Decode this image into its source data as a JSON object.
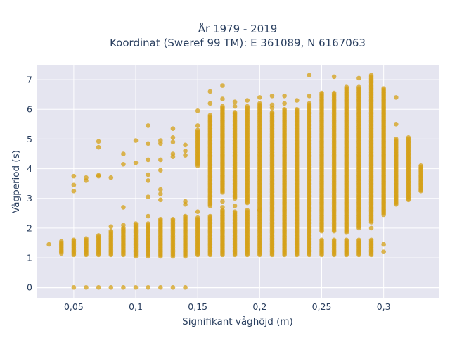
{
  "chart_data": {
    "type": "scatter",
    "title_lines": [
      "År 1979 - 2019",
      "Koordinat (Sweref 99 TM): E 361089, N 6167063"
    ],
    "xlabel": "Signifikant våghöjd (m)",
    "ylabel": "Vågperiod (s)",
    "xlim": [
      0.02,
      0.345
    ],
    "ylim": [
      -0.35,
      7.5
    ],
    "x_ticks": [
      0.05,
      0.1,
      0.15,
      0.2,
      0.25,
      0.3
    ],
    "x_tick_labels": [
      "0,05",
      "0,1",
      "0,15",
      "0,2",
      "0,25",
      "0,3"
    ],
    "y_ticks": [
      0,
      1,
      2,
      3,
      4,
      5,
      6,
      7
    ],
    "y_tick_labels": [
      "0",
      "1",
      "2",
      "3",
      "4",
      "5",
      "6",
      "7"
    ],
    "grid": true,
    "colors": {
      "marker": "#d4a017",
      "plot_bg": "#e5e5f0"
    },
    "columns": [
      {
        "x": 0.03,
        "segments": [
          [
            1.45,
            1.45
          ]
        ],
        "points": []
      },
      {
        "x": 0.04,
        "segments": [
          [
            1.15,
            1.55
          ]
        ],
        "points": []
      },
      {
        "x": 0.05,
        "segments": [
          [
            1.1,
            1.6
          ]
        ],
        "points": [
          0,
          3.25,
          3.45,
          3.75
        ]
      },
      {
        "x": 0.06,
        "segments": [
          [
            1.1,
            1.65
          ]
        ],
        "points": [
          0,
          3.6,
          3.7
        ]
      },
      {
        "x": 0.07,
        "segments": [
          [
            1.1,
            1.75
          ]
        ],
        "points": [
          0,
          3.75,
          3.78,
          4.72,
          4.92
        ]
      },
      {
        "x": 0.08,
        "segments": [
          [
            1.1,
            1.9
          ]
        ],
        "points": [
          0,
          2.05,
          3.7
        ]
      },
      {
        "x": 0.09,
        "segments": [
          [
            1.1,
            2.0
          ]
        ],
        "points": [
          0,
          2.1,
          2.7,
          4.15,
          4.5
        ]
      },
      {
        "x": 0.1,
        "segments": [
          [
            1.05,
            2.15
          ]
        ],
        "points": [
          0,
          4.2,
          4.95
        ]
      },
      {
        "x": 0.11,
        "segments": [
          [
            1.05,
            2.15
          ]
        ],
        "points": [
          0,
          2.4,
          3.05,
          3.6,
          3.8,
          4.3,
          4.85,
          5.45
        ]
      },
      {
        "x": 0.12,
        "segments": [
          [
            1.05,
            2.3
          ]
        ],
        "points": [
          0,
          2.95,
          3.15,
          3.3,
          3.95,
          4.3,
          4.85,
          4.95
        ]
      },
      {
        "x": 0.13,
        "segments": [
          [
            1.05,
            2.3
          ]
        ],
        "points": [
          0,
          4.4,
          4.5,
          4.9,
          5.05,
          5.35
        ]
      },
      {
        "x": 0.14,
        "segments": [
          [
            1.05,
            2.4
          ]
        ],
        "points": [
          0,
          2.8,
          2.9,
          4.45,
          4.6,
          4.8
        ]
      },
      {
        "x": 0.15,
        "segments": [
          [
            1.1,
            2.35
          ],
          [
            4.1,
            5.3
          ]
        ],
        "points": [
          2.55,
          5.45,
          5.95
        ]
      },
      {
        "x": 0.16,
        "segments": [
          [
            1.1,
            2.4
          ],
          [
            2.75,
            5.8
          ]
        ],
        "points": [
          6.2,
          6.6
        ]
      },
      {
        "x": 0.17,
        "segments": [
          [
            1.1,
            2.6
          ],
          [
            3.2,
            6.1
          ]
        ],
        "points": [
          2.7,
          2.9,
          6.35,
          6.8
        ]
      },
      {
        "x": 0.18,
        "segments": [
          [
            1.1,
            2.55
          ],
          [
            3.0,
            5.9
          ]
        ],
        "points": [
          2.75,
          6.1,
          6.25
        ]
      },
      {
        "x": 0.19,
        "segments": [
          [
            1.1,
            2.6
          ],
          [
            2.85,
            6.1
          ]
        ],
        "points": [
          6.3
        ]
      },
      {
        "x": 0.2,
        "segments": [
          [
            1.1,
            2.6
          ],
          [
            2.6,
            6.2
          ]
        ],
        "points": [
          6.4
        ]
      },
      {
        "x": 0.21,
        "segments": [
          [
            1.1,
            5.9
          ]
        ],
        "points": [
          6.05,
          6.15,
          6.45
        ]
      },
      {
        "x": 0.22,
        "segments": [
          [
            1.1,
            6.0
          ]
        ],
        "points": [
          6.2,
          6.45
        ]
      },
      {
        "x": 0.23,
        "segments": [
          [
            1.1,
            6.0
          ]
        ],
        "points": [
          6.3
        ]
      },
      {
        "x": 0.24,
        "segments": [
          [
            1.1,
            6.2
          ]
        ],
        "points": [
          6.45,
          7.15
        ]
      },
      {
        "x": 0.25,
        "segments": [
          [
            1.1,
            1.6
          ],
          [
            1.9,
            6.55
          ]
        ],
        "points": []
      },
      {
        "x": 0.26,
        "segments": [
          [
            1.1,
            1.6
          ],
          [
            1.9,
            6.55
          ]
        ],
        "points": [
          7.1
        ]
      },
      {
        "x": 0.27,
        "segments": [
          [
            1.1,
            1.6
          ],
          [
            1.85,
            6.75
          ]
        ],
        "points": []
      },
      {
        "x": 0.28,
        "segments": [
          [
            1.1,
            1.6
          ],
          [
            2.0,
            6.75
          ]
        ],
        "points": [
          7.05
        ]
      },
      {
        "x": 0.29,
        "segments": [
          [
            1.1,
            1.6
          ],
          [
            2.2,
            7.15
          ]
        ],
        "points": [
          2.0
        ]
      },
      {
        "x": 0.3,
        "segments": [
          [
            2.45,
            6.7
          ]
        ],
        "points": [
          1.2,
          1.45
        ]
      },
      {
        "x": 0.31,
        "segments": [
          [
            2.8,
            5.0
          ]
        ],
        "points": [
          5.5,
          6.4
        ]
      },
      {
        "x": 0.32,
        "segments": [
          [
            2.95,
            5.05
          ]
        ],
        "points": []
      },
      {
        "x": 0.33,
        "segments": [
          [
            3.25,
            4.1
          ]
        ],
        "points": []
      }
    ]
  }
}
